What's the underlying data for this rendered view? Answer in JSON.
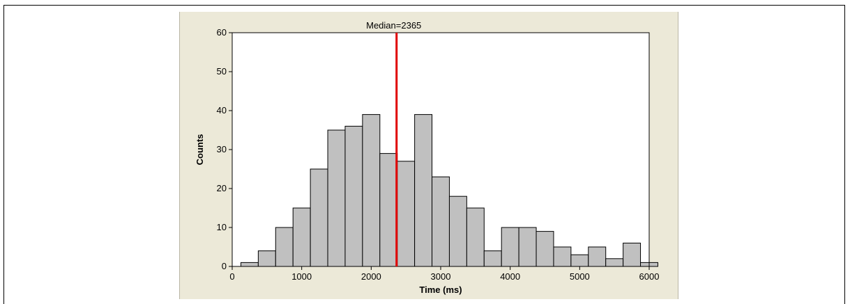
{
  "chart_data": {
    "type": "bar",
    "title": "",
    "xlabel": "Time (ms)",
    "ylabel": "Counts",
    "xlim": [
      0,
      6000
    ],
    "ylim": [
      0,
      60
    ],
    "x_ticks": [
      0,
      1000,
      2000,
      3000,
      4000,
      5000,
      6000
    ],
    "y_ticks": [
      0,
      10,
      20,
      30,
      40,
      50,
      60
    ],
    "bin_width": 250,
    "bin_starts": [
      125,
      375,
      625,
      875,
      1125,
      1375,
      1625,
      1875,
      2125,
      2375,
      2625,
      2875,
      3125,
      3375,
      3625,
      3875,
      4125,
      4375,
      4625,
      4875,
      5125,
      5375,
      5625,
      5875
    ],
    "values": [
      1,
      4,
      10,
      15,
      25,
      35,
      36,
      39,
      29,
      27,
      39,
      23,
      18,
      15,
      4,
      10,
      10,
      9,
      5,
      3,
      5,
      2,
      6,
      1
    ],
    "median": {
      "value": 2365,
      "label": "Median=2365",
      "color": "#e00000"
    },
    "bar_fill": "#c0c0c0",
    "bar_stroke": "#000000",
    "plot_background": "#ffffff",
    "panel_background": "#ece9d8",
    "grid": false,
    "legend": "none"
  }
}
